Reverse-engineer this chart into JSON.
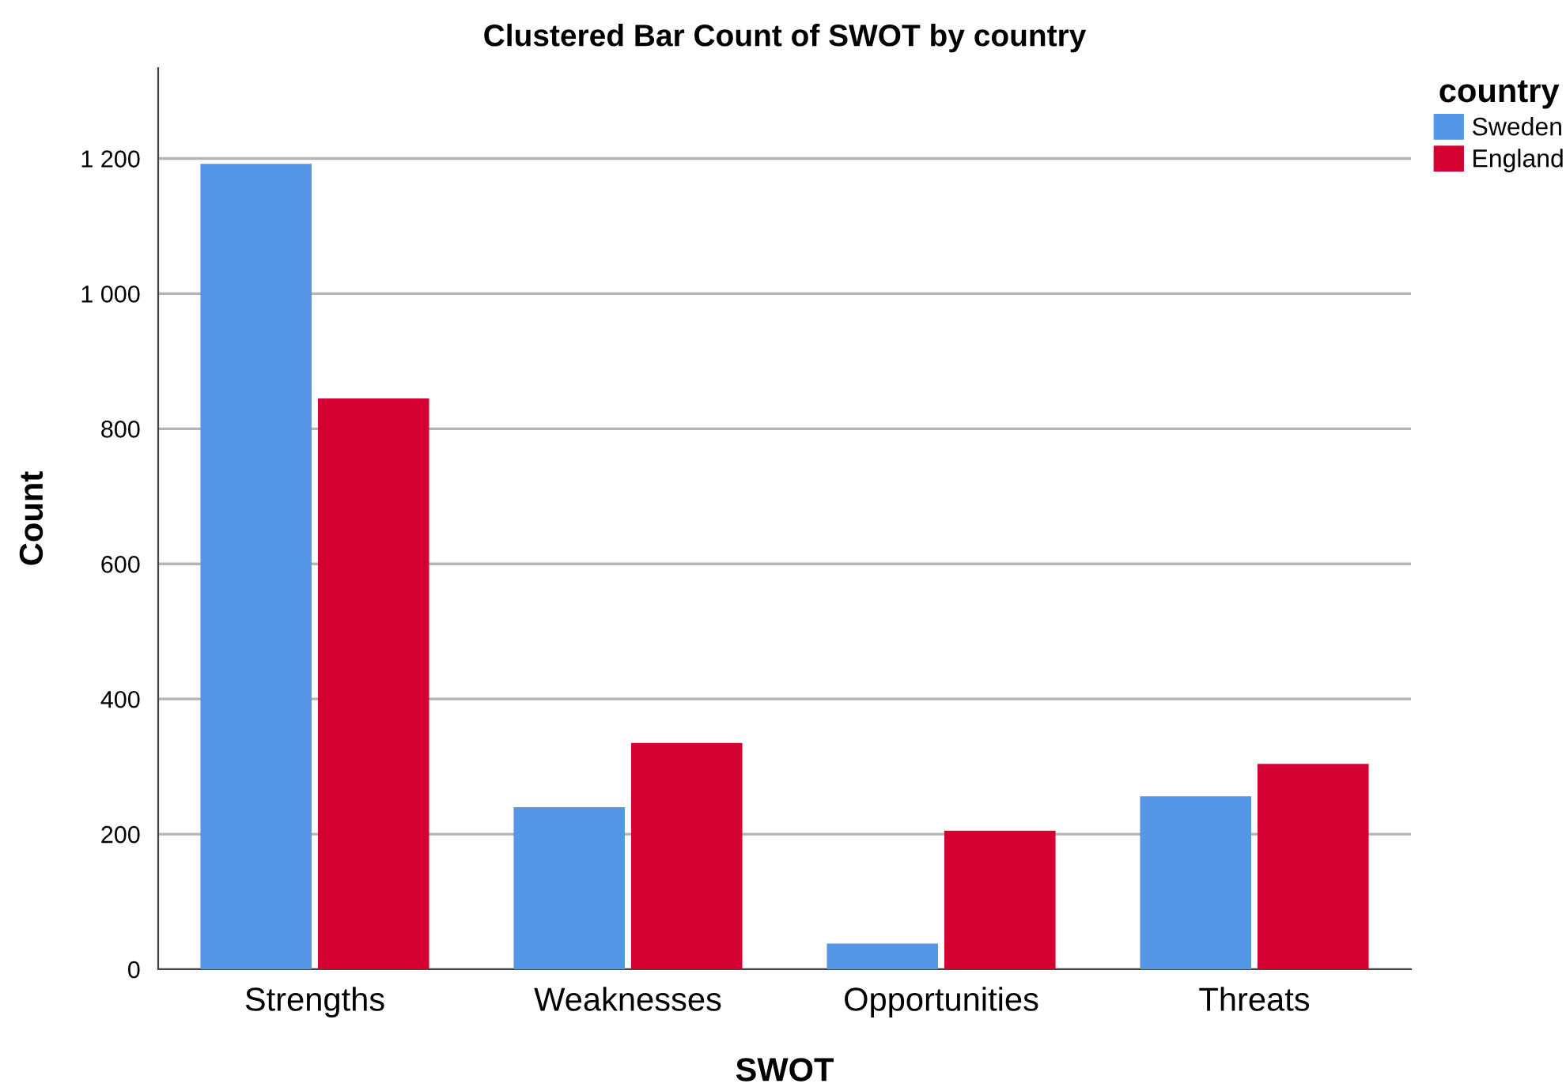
{
  "chart_data": {
    "type": "bar",
    "title": "Clustered Bar Count of SWOT by country",
    "xlabel": "SWOT",
    "ylabel": "Count",
    "legend_title": "country",
    "categories": [
      "Strengths",
      "Weaknesses",
      "Opportunities",
      "Threats"
    ],
    "series": [
      {
        "name": "Sweden",
        "color": "#5596e6",
        "values": [
          1192,
          240,
          38,
          256
        ]
      },
      {
        "name": "England",
        "color": "#d50032",
        "values": [
          845,
          335,
          205,
          304
        ]
      }
    ],
    "ylim": [
      0,
      1334
    ],
    "yticks": [
      0,
      200,
      400,
      600,
      800,
      {
        "value": 1000,
        "label": "1 000"
      },
      {
        "value": 1200,
        "label": "1 200"
      }
    ],
    "grid": "y",
    "legend": "top right"
  }
}
